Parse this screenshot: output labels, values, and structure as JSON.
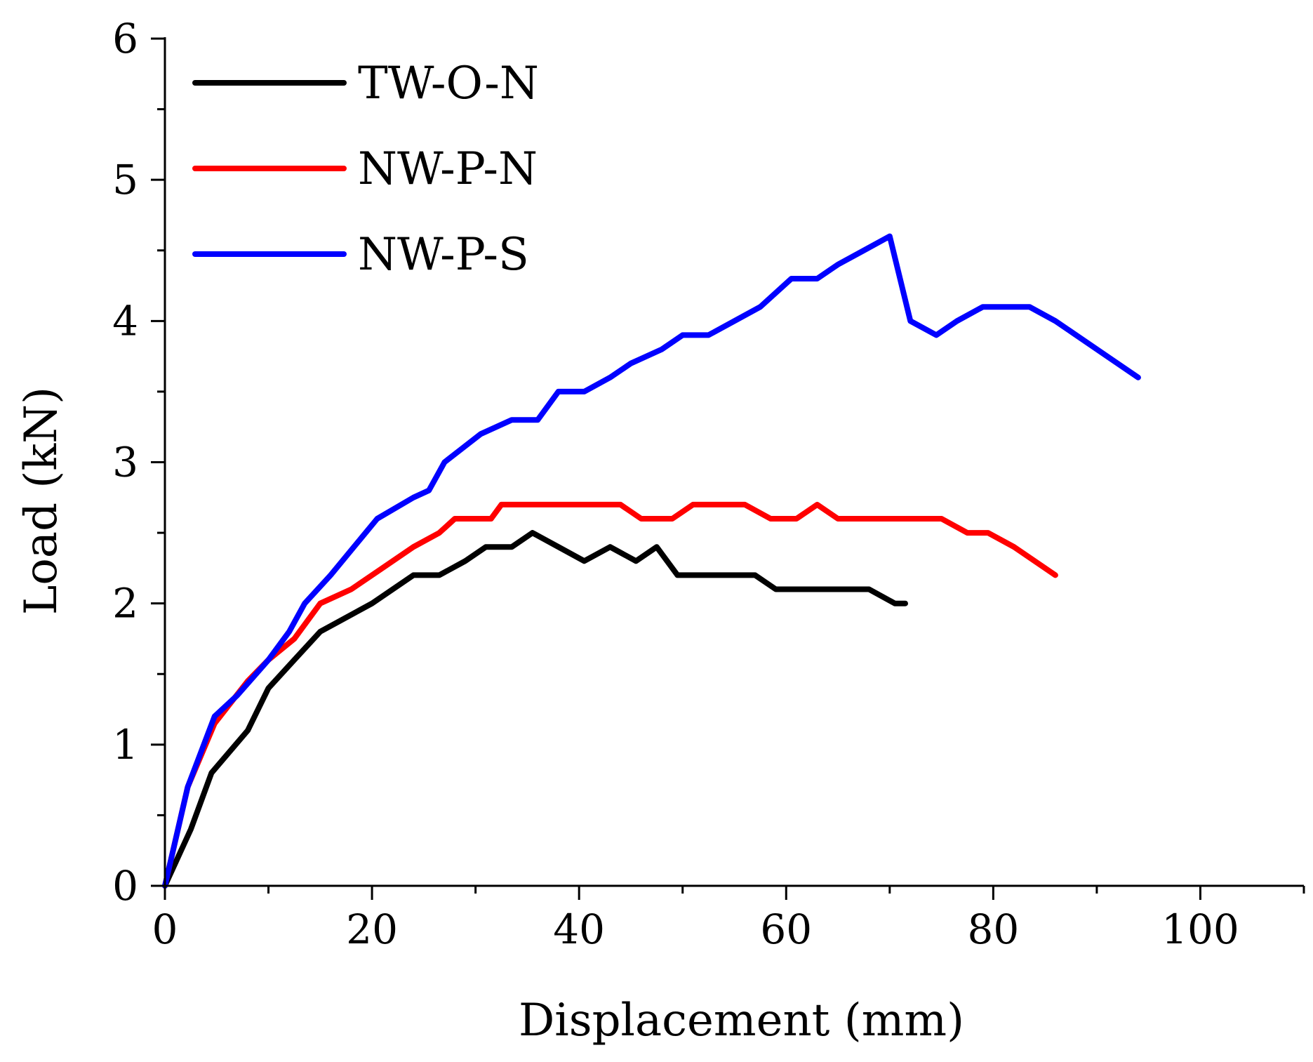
{
  "chart_data": {
    "type": "line",
    "title": "",
    "xlabel": "Displacement (mm)",
    "ylabel": "Load (kN)",
    "xlim": [
      0,
      110
    ],
    "ylim": [
      0,
      6
    ],
    "xticks": [
      0,
      20,
      40,
      60,
      80,
      100
    ],
    "yticks": [
      0,
      1,
      2,
      3,
      4,
      5,
      6
    ],
    "xtick_labels": [
      "0",
      "20",
      "40",
      "60",
      "80",
      "100"
    ],
    "ytick_labels": [
      "0",
      "1",
      "2",
      "3",
      "4",
      "5",
      "6"
    ],
    "grid": false,
    "legend_position": "top-left",
    "series": [
      {
        "name": "TW-O-N",
        "color": "#000000",
        "x": [
          0,
          2.5,
          4.5,
          8,
          10,
          12.5,
          15,
          20,
          24,
          26.5,
          29,
          31,
          33.5,
          35.5,
          38,
          40.5,
          43,
          45.5,
          47.5,
          49.5,
          52,
          55,
          57,
          59,
          62,
          65,
          68,
          70.5,
          71.5
        ],
        "y": [
          0,
          0.4,
          0.8,
          1.1,
          1.4,
          1.6,
          1.8,
          2.0,
          2.2,
          2.2,
          2.3,
          2.4,
          2.4,
          2.5,
          2.4,
          2.3,
          2.4,
          2.3,
          2.4,
          2.2,
          2.2,
          2.2,
          2.2,
          2.1,
          2.1,
          2.1,
          2.1,
          2.0,
          2.0
        ]
      },
      {
        "name": "NW-P-N",
        "color": "#ff0000",
        "x": [
          0,
          2.2,
          4.8,
          8,
          10,
          12.5,
          15,
          18,
          21,
          24,
          26.5,
          28,
          31.5,
          32.5,
          36,
          40,
          44,
          46,
          49,
          51,
          53,
          56,
          58.5,
          61,
          63,
          65,
          68,
          71,
          75,
          77.5,
          79.5,
          82,
          84,
          86
        ],
        "y": [
          0,
          0.7,
          1.15,
          1.45,
          1.6,
          1.75,
          2.0,
          2.1,
          2.25,
          2.4,
          2.5,
          2.6,
          2.6,
          2.7,
          2.7,
          2.7,
          2.7,
          2.6,
          2.6,
          2.7,
          2.7,
          2.7,
          2.6,
          2.6,
          2.7,
          2.6,
          2.6,
          2.6,
          2.6,
          2.5,
          2.5,
          2.4,
          2.3,
          2.2
        ]
      },
      {
        "name": "NW-P-S",
        "color": "#0000ff",
        "x": [
          0,
          2.2,
          4.8,
          7,
          10,
          12,
          13.5,
          16,
          20.5,
          24,
          25.5,
          27,
          30.5,
          33.5,
          36,
          38,
          40.5,
          43,
          45,
          48,
          50,
          52.5,
          55,
          57.5,
          60.5,
          63,
          65,
          67.5,
          70,
          72,
          74.5,
          76.5,
          79,
          82,
          83.5,
          86,
          90,
          94
        ],
        "y": [
          0,
          0.7,
          1.2,
          1.35,
          1.6,
          1.8,
          2.0,
          2.2,
          2.6,
          2.75,
          2.8,
          3.0,
          3.2,
          3.3,
          3.3,
          3.5,
          3.5,
          3.6,
          3.7,
          3.8,
          3.9,
          3.9,
          4.0,
          4.1,
          4.3,
          4.3,
          4.4,
          4.5,
          4.6,
          4.0,
          3.9,
          4.0,
          4.1,
          4.1,
          4.1,
          4.0,
          3.8,
          3.6
        ]
      }
    ]
  }
}
